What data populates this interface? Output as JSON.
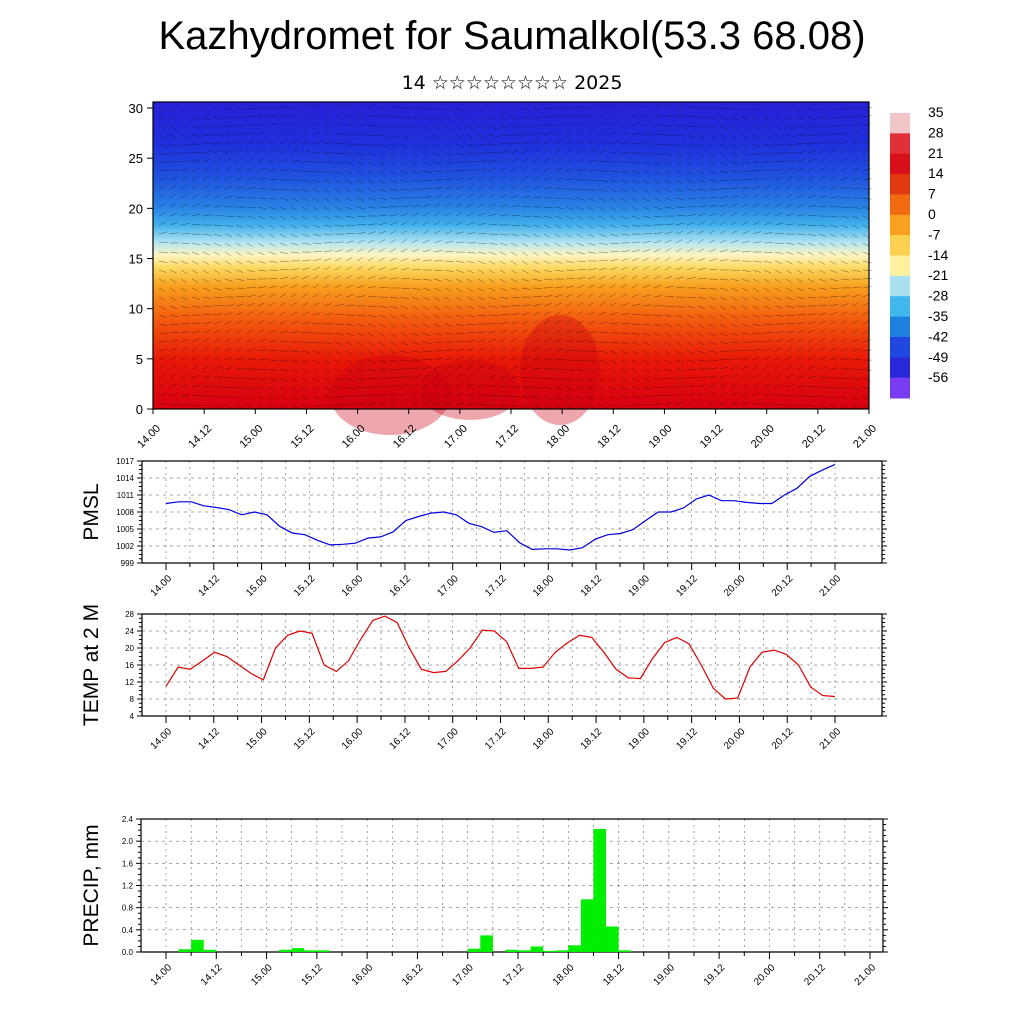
{
  "title": "Kazhydromet for Saumalkol(53.3 68.08)",
  "subtitle": "14 ☆☆☆☆☆☆☆☆ 2025",
  "time_labels": [
    "14.00",
    "14.12",
    "15.00",
    "15.12",
    "16.00",
    "16.12",
    "17.00",
    "17.12",
    "18.00",
    "18.12",
    "19.00",
    "19.12",
    "20.00",
    "20.12",
    "21.00"
  ],
  "chart_data": [
    {
      "type": "heatmap",
      "name": "cross-section",
      "yticks": [
        0,
        5,
        10,
        15,
        20,
        25,
        30
      ],
      "ylim": [
        0,
        30.6
      ],
      "colorbar_labels": [
        "35",
        "28",
        "21",
        "14",
        "7",
        "0",
        "-7",
        "-14",
        "-21",
        "-28",
        "-35",
        "-42",
        "-49",
        "-56"
      ],
      "colorbar_colors": [
        "#f2c6c6",
        "#e0303a",
        "#d81018",
        "#e23a10",
        "#f26a10",
        "#f8a020",
        "#fcd050",
        "#fff0a0",
        "#a8e0f0",
        "#40b8ec",
        "#2080e0",
        "#2048e0",
        "#2828d8",
        "#7a3cf0"
      ]
    },
    {
      "type": "line",
      "ylabel": "PMSL",
      "yticks": [
        999,
        1002,
        1005,
        1008,
        1011,
        1014,
        1017
      ],
      "ylim": [
        999,
        1017
      ],
      "color": "#0000dd",
      "values": [
        1009.5,
        1009.8,
        1009.8,
        1009.1,
        1008.8,
        1008.4,
        1007.5,
        1008.0,
        1007.5,
        1005.5,
        1004.3,
        1004.0,
        1003.0,
        1002.2,
        1002.3,
        1002.5,
        1003.4,
        1003.6,
        1004.5,
        1006.5,
        1007.2,
        1007.8,
        1008.0,
        1007.5,
        1006.0,
        1005.4,
        1004.4,
        1004.7,
        1002.6,
        1001.4,
        1001.5,
        1001.5,
        1001.3,
        1001.7,
        1003.2,
        1004.0,
        1004.2,
        1004.9,
        1006.5,
        1008.0,
        1008.0,
        1008.7,
        1010.3,
        1011.0,
        1010.0,
        1010.0,
        1009.7,
        1009.5,
        1009.5,
        1011.0,
        1012.2,
        1014.3,
        1015.4,
        1016.4
      ]
    },
    {
      "type": "line",
      "ylabel": "TEMP at 2 M",
      "yticks": [
        4,
        8,
        12,
        16,
        20,
        24,
        28
      ],
      "ylim": [
        4,
        28
      ],
      "color": "#dd0000",
      "values": [
        11,
        15.5,
        15,
        17,
        19,
        18,
        16,
        14,
        12.5,
        20,
        23,
        24,
        23.5,
        16,
        14.5,
        17,
        22,
        26.5,
        27.5,
        26,
        20,
        15,
        14.2,
        14.5,
        17,
        20,
        24.2,
        24,
        21.5,
        15.2,
        15.2,
        15.5,
        19,
        21.2,
        23,
        22.5,
        19,
        15,
        13,
        12.8,
        17.5,
        21.3,
        22.5,
        21,
        16,
        10.5,
        8,
        8.2,
        15.5,
        19,
        19.5,
        18.5,
        16,
        10.8,
        8.8,
        8.6
      ]
    },
    {
      "type": "bar",
      "ylabel": "PRECIP, mm",
      "yticks": [
        "0.0",
        "0.4",
        "0.8",
        "1.2",
        "1.6",
        "2.0",
        "2.4"
      ],
      "ylim": [
        0,
        2.4
      ],
      "color": "#00ee00",
      "values": [
        0,
        0.05,
        0.22,
        0.04,
        0,
        0,
        0,
        0,
        0,
        0.04,
        0.07,
        0.03,
        0.03,
        0,
        0,
        0,
        0,
        0,
        0,
        0,
        0,
        0,
        0,
        0,
        0.06,
        0.3,
        0,
        0.04,
        0.03,
        0.1,
        0.02,
        0.03,
        0.12,
        0.95,
        2.22,
        0.46,
        0.03,
        0,
        0,
        0,
        0,
        0,
        0,
        0,
        0,
        0,
        0,
        0,
        0,
        0,
        0,
        0,
        0,
        0,
        0,
        0
      ]
    }
  ]
}
